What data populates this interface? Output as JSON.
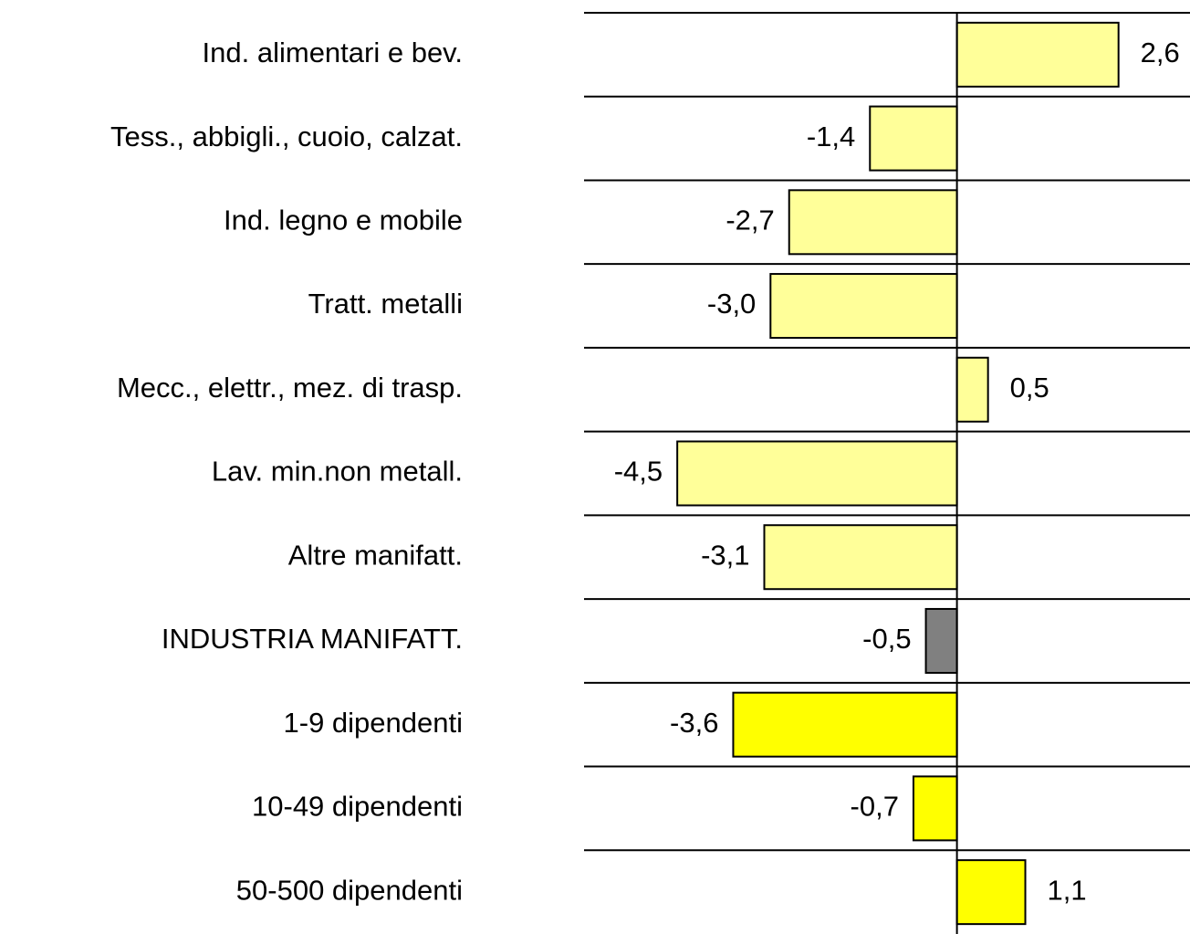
{
  "chart_data": {
    "type": "bar",
    "orientation": "horizontal",
    "categories": [
      "Ind. alimentari e bev.",
      "Tess., abbigli., cuoio, calzat.",
      "Ind. legno e mobile",
      "Tratt. metalli",
      "Mecc., elettr., mez. di trasp.",
      "Lav. min.non metall.",
      "Altre manifatt.",
      "INDUSTRIA MANIFATT.",
      "1-9 dipendenti",
      "10-49 dipendenti",
      "50-500 dipendenti"
    ],
    "values": [
      2.6,
      -1.4,
      -2.7,
      -3.0,
      0.5,
      -4.5,
      -3.1,
      -0.5,
      -3.6,
      -0.7,
      1.1
    ],
    "value_labels": [
      "2,6",
      "-1,4",
      "-2,7",
      "-3,0",
      "0,5",
      "-4,5",
      "-3,1",
      "-0,5",
      "-3,6",
      "-0,7",
      "1,1"
    ],
    "colors": [
      "#ffff99",
      "#ffff99",
      "#ffff99",
      "#ffff99",
      "#ffff99",
      "#ffff99",
      "#ffff99",
      "#808080",
      "#ffff00",
      "#ffff00",
      "#ffff00"
    ],
    "xlim": [
      -6,
      3.75
    ],
    "grid": true
  }
}
